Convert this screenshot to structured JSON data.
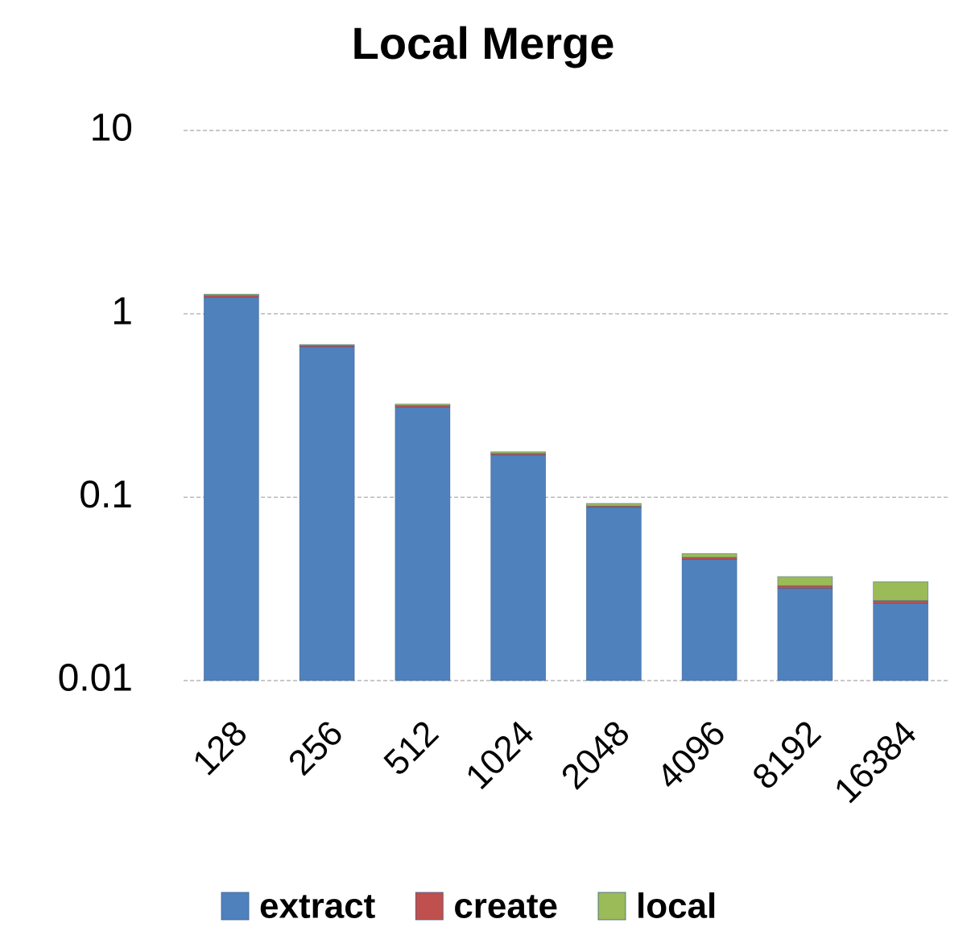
{
  "chart_data": {
    "type": "stacked_bar",
    "title": "Local Merge",
    "categories": [
      "128",
      "256",
      "512",
      "1024",
      "2048",
      "4096",
      "8192",
      "16384"
    ],
    "series": [
      {
        "name": "extract",
        "color": "#4f81bd",
        "values": [
          1.22,
          0.65,
          0.3,
          0.16,
          0.078,
          0.0358,
          0.0218,
          0.0164
        ]
      },
      {
        "name": "create",
        "color": "#c0504d",
        "values": [
          0.03,
          0.012,
          0.006,
          0.003,
          0.0015,
          0.0012,
          0.0011,
          0.0009
        ]
      },
      {
        "name": "local",
        "color": "#9bbb59",
        "values": [
          0.02,
          0.008,
          0.006,
          0.004,
          0.003,
          0.0023,
          0.004,
          0.0073
        ]
      }
    ],
    "ylim": [
      0.01,
      10
    ],
    "yticks": [
      10,
      1,
      0.1,
      0.01
    ],
    "log_scale": true,
    "grid": true,
    "legend": "bottom"
  }
}
